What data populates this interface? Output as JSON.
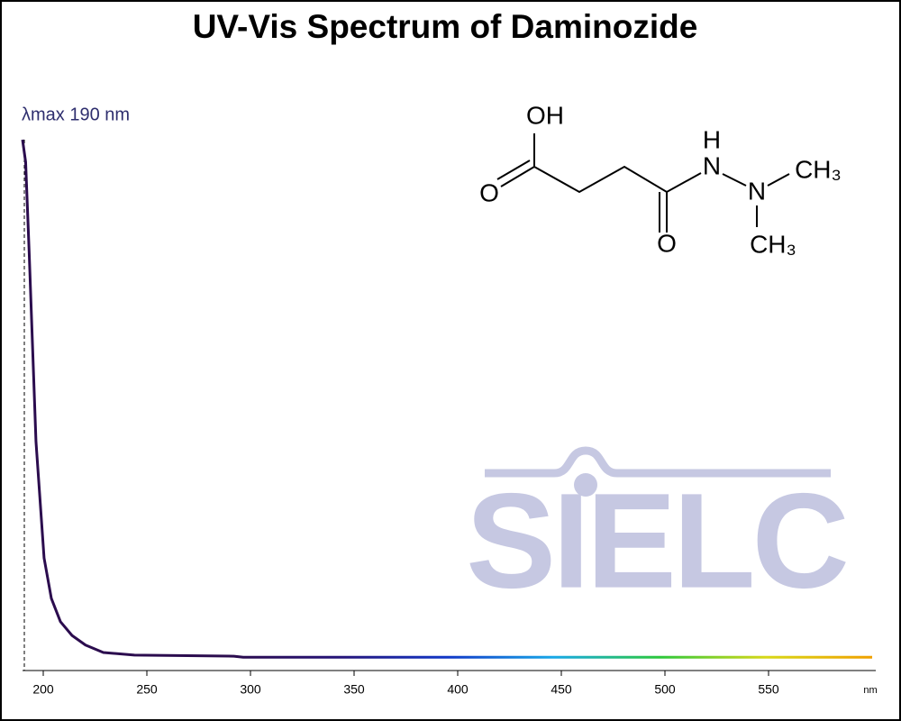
{
  "chart_data": {
    "type": "line",
    "title": "UV-Vis Spectrum of Daminozide",
    "annotation": "λmax  190 nm",
    "xlabel": "nm",
    "watermark": "SIELC",
    "structure_labels": [
      "OH",
      "O",
      "O",
      "H",
      "N",
      "N",
      "CH₃",
      "CH₃"
    ],
    "x": [
      190,
      191.5,
      193.2,
      196.5,
      200.4,
      203.9,
      208.3,
      213.9,
      220.4,
      229,
      244,
      292,
      296.5,
      600
    ],
    "series": [
      {
        "values": [
          1.0,
          0.958,
          0.788,
          0.431,
          0.212,
          0.136,
          0.092,
          0.066,
          0.048,
          0.034,
          0.029,
          0.027,
          0.025,
          0.025
        ]
      }
    ],
    "line_colors": [
      "#2b0c4e",
      "#2b0c4e",
      "#2b0c4e",
      "#26157a",
      "#1238c8",
      "#18a8e8",
      "#2cc83c",
      "#d8d818",
      "#f0a000"
    ],
    "xlim": [
      190,
      600
    ],
    "ylim": [
      0,
      1
    ],
    "xticks": [
      200,
      250,
      300,
      350,
      400,
      450,
      500,
      550
    ]
  }
}
